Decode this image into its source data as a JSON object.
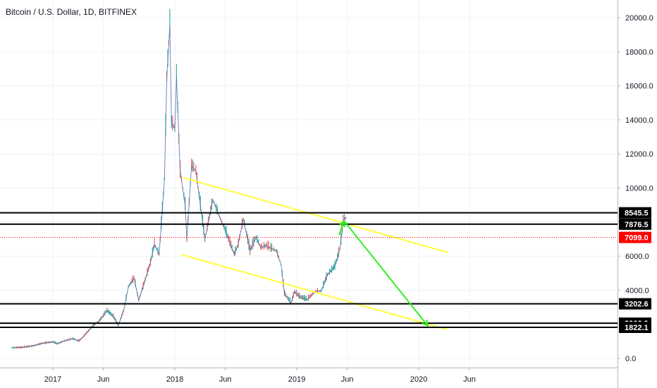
{
  "chart_data": {
    "type": "line",
    "title": "Bitcoin / U.S. Dollar, 1D, BITFINEX",
    "colors": {
      "up": "#26a69a",
      "down": "#ef5350",
      "price_line": "#4b6ea8",
      "level": "#000000",
      "channel": "#ffff3b",
      "arrow": "#33ee22",
      "current_price": "#ff0000",
      "grid": "#f0f3fa"
    },
    "x_ticks": [
      "2017",
      "Jun",
      "2018",
      "Jun",
      "2019",
      "Jun",
      "2020",
      "Jun"
    ],
    "y_ticks": [
      "20000.0",
      "18000.0",
      "16000.0",
      "14000.0",
      "12000.0",
      "10000.0",
      "8000.0",
      "6000.0",
      "4000.0",
      "2000.0",
      "0.0"
    ],
    "ylim": [
      -1000,
      21000
    ],
    "series": [
      {
        "values_desc": "approx daily close",
        "x": [
          "2016-09-01",
          "2016-10-01",
          "2016-11-01",
          "2016-12-01",
          "2017-01-01",
          "2017-01-15",
          "2017-02-01",
          "2017-03-01",
          "2017-03-20",
          "2017-04-01",
          "2017-05-01",
          "2017-05-20",
          "2017-06-01",
          "2017-06-12",
          "2017-07-01",
          "2017-07-16",
          "2017-08-01",
          "2017-08-15",
          "2017-09-01",
          "2017-09-15",
          "2017-10-01",
          "2017-10-20",
          "2017-11-01",
          "2017-11-15",
          "2017-12-01",
          "2017-12-08",
          "2017-12-17",
          "2017-12-22",
          "2018-01-01",
          "2018-01-06",
          "2018-01-17",
          "2018-02-01",
          "2018-02-06",
          "2018-02-20",
          "2018-03-05",
          "2018-04-01",
          "2018-04-25",
          "2018-05-15",
          "2018-06-01",
          "2018-06-28",
          "2018-07-10",
          "2018-07-25",
          "2018-08-14",
          "2018-09-01",
          "2018-09-15",
          "2018-10-01",
          "2018-11-01",
          "2018-11-15",
          "2018-11-25",
          "2018-12-15",
          "2018-12-25",
          "2019-01-10",
          "2019-02-01",
          "2019-02-25",
          "2019-03-15",
          "2019-04-03",
          "2019-04-25",
          "2019-05-10",
          "2019-05-20",
          "2019-05-30"
        ],
        "values": [
          620,
          640,
          720,
          880,
          960,
          850,
          1000,
          1150,
          1020,
          1250,
          1900,
          2200,
          2500,
          2800,
          2450,
          1950,
          2800,
          4200,
          4700,
          3400,
          4400,
          5600,
          6700,
          6100,
          10500,
          16500,
          19500,
          13800,
          13500,
          16500,
          11000,
          9000,
          7000,
          11300,
          11000,
          7000,
          9300,
          8300,
          7500,
          6100,
          6700,
          8200,
          6300,
          7100,
          6500,
          6600,
          6300,
          5500,
          3800,
          3250,
          3900,
          3600,
          3450,
          3900,
          3950,
          4900,
          5400,
          6400,
          8000,
          8300
        ]
      }
    ],
    "levels": [
      "8545.5",
      "7876.5",
      "3202.6",
      "2066.9",
      "1822.1"
    ],
    "current_price": "7099.0"
  }
}
